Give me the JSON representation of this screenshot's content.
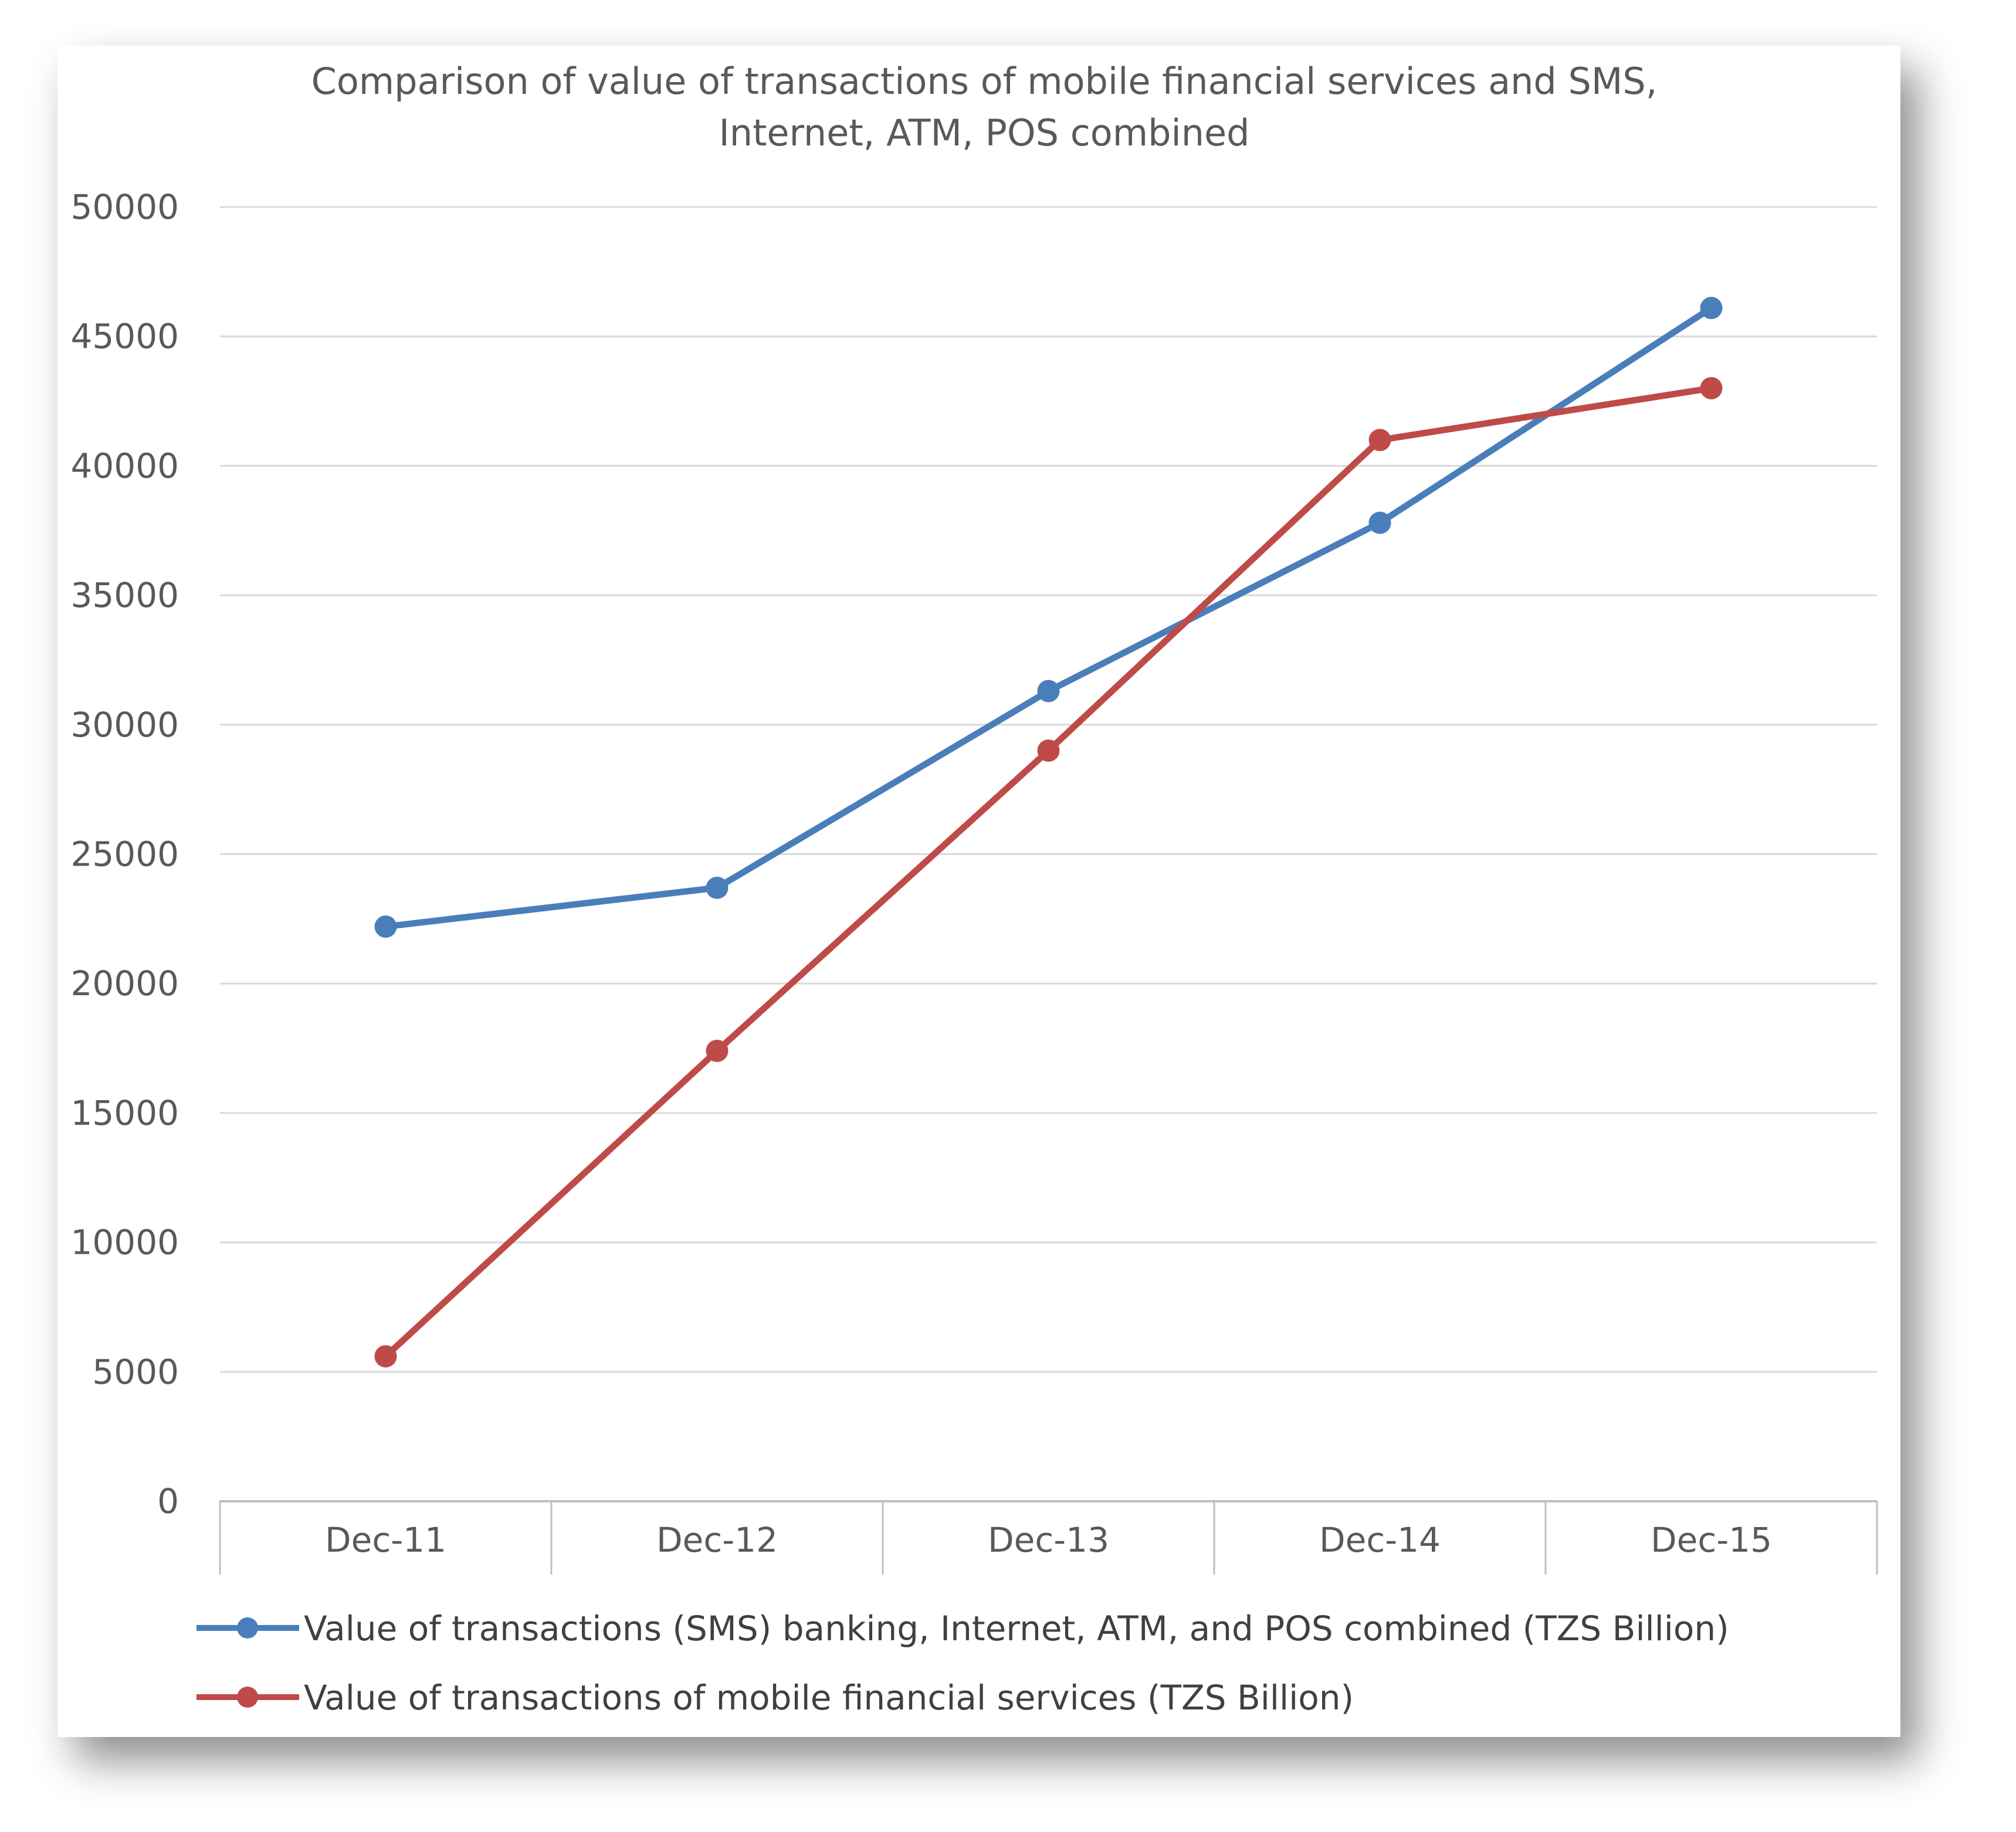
{
  "chart_data": {
    "type": "line",
    "title": [
      "Comparison of value of transactions of mobile financial services and SMS,",
      "Internet, ATM, POS combined"
    ],
    "categories": [
      "Dec-11",
      "Dec-12",
      "Dec-13",
      "Dec-14",
      "Dec-15"
    ],
    "ylim": [
      0,
      50000
    ],
    "yticks": [
      0,
      5000,
      10000,
      15000,
      20000,
      25000,
      30000,
      35000,
      40000,
      45000,
      50000
    ],
    "ytick_labels": [
      "0",
      "5000",
      "10000",
      "15000",
      "20000",
      "25000",
      "30000",
      "35000",
      "40000",
      "45000",
      "50000"
    ],
    "grid": true,
    "legend_position": "bottom",
    "series": [
      {
        "name": "Value of transactions (SMS) banking, Internet, ATM, and POS combined (TZS Billion)",
        "color": "#4A7EBB",
        "values": [
          22200,
          23700,
          31300,
          37800,
          46100
        ]
      },
      {
        "name": "Value of transactions of mobile financial services (TZS Billion)",
        "color": "#BE4B48",
        "values": [
          5600,
          17400,
          29000,
          41000,
          43000
        ]
      }
    ]
  }
}
